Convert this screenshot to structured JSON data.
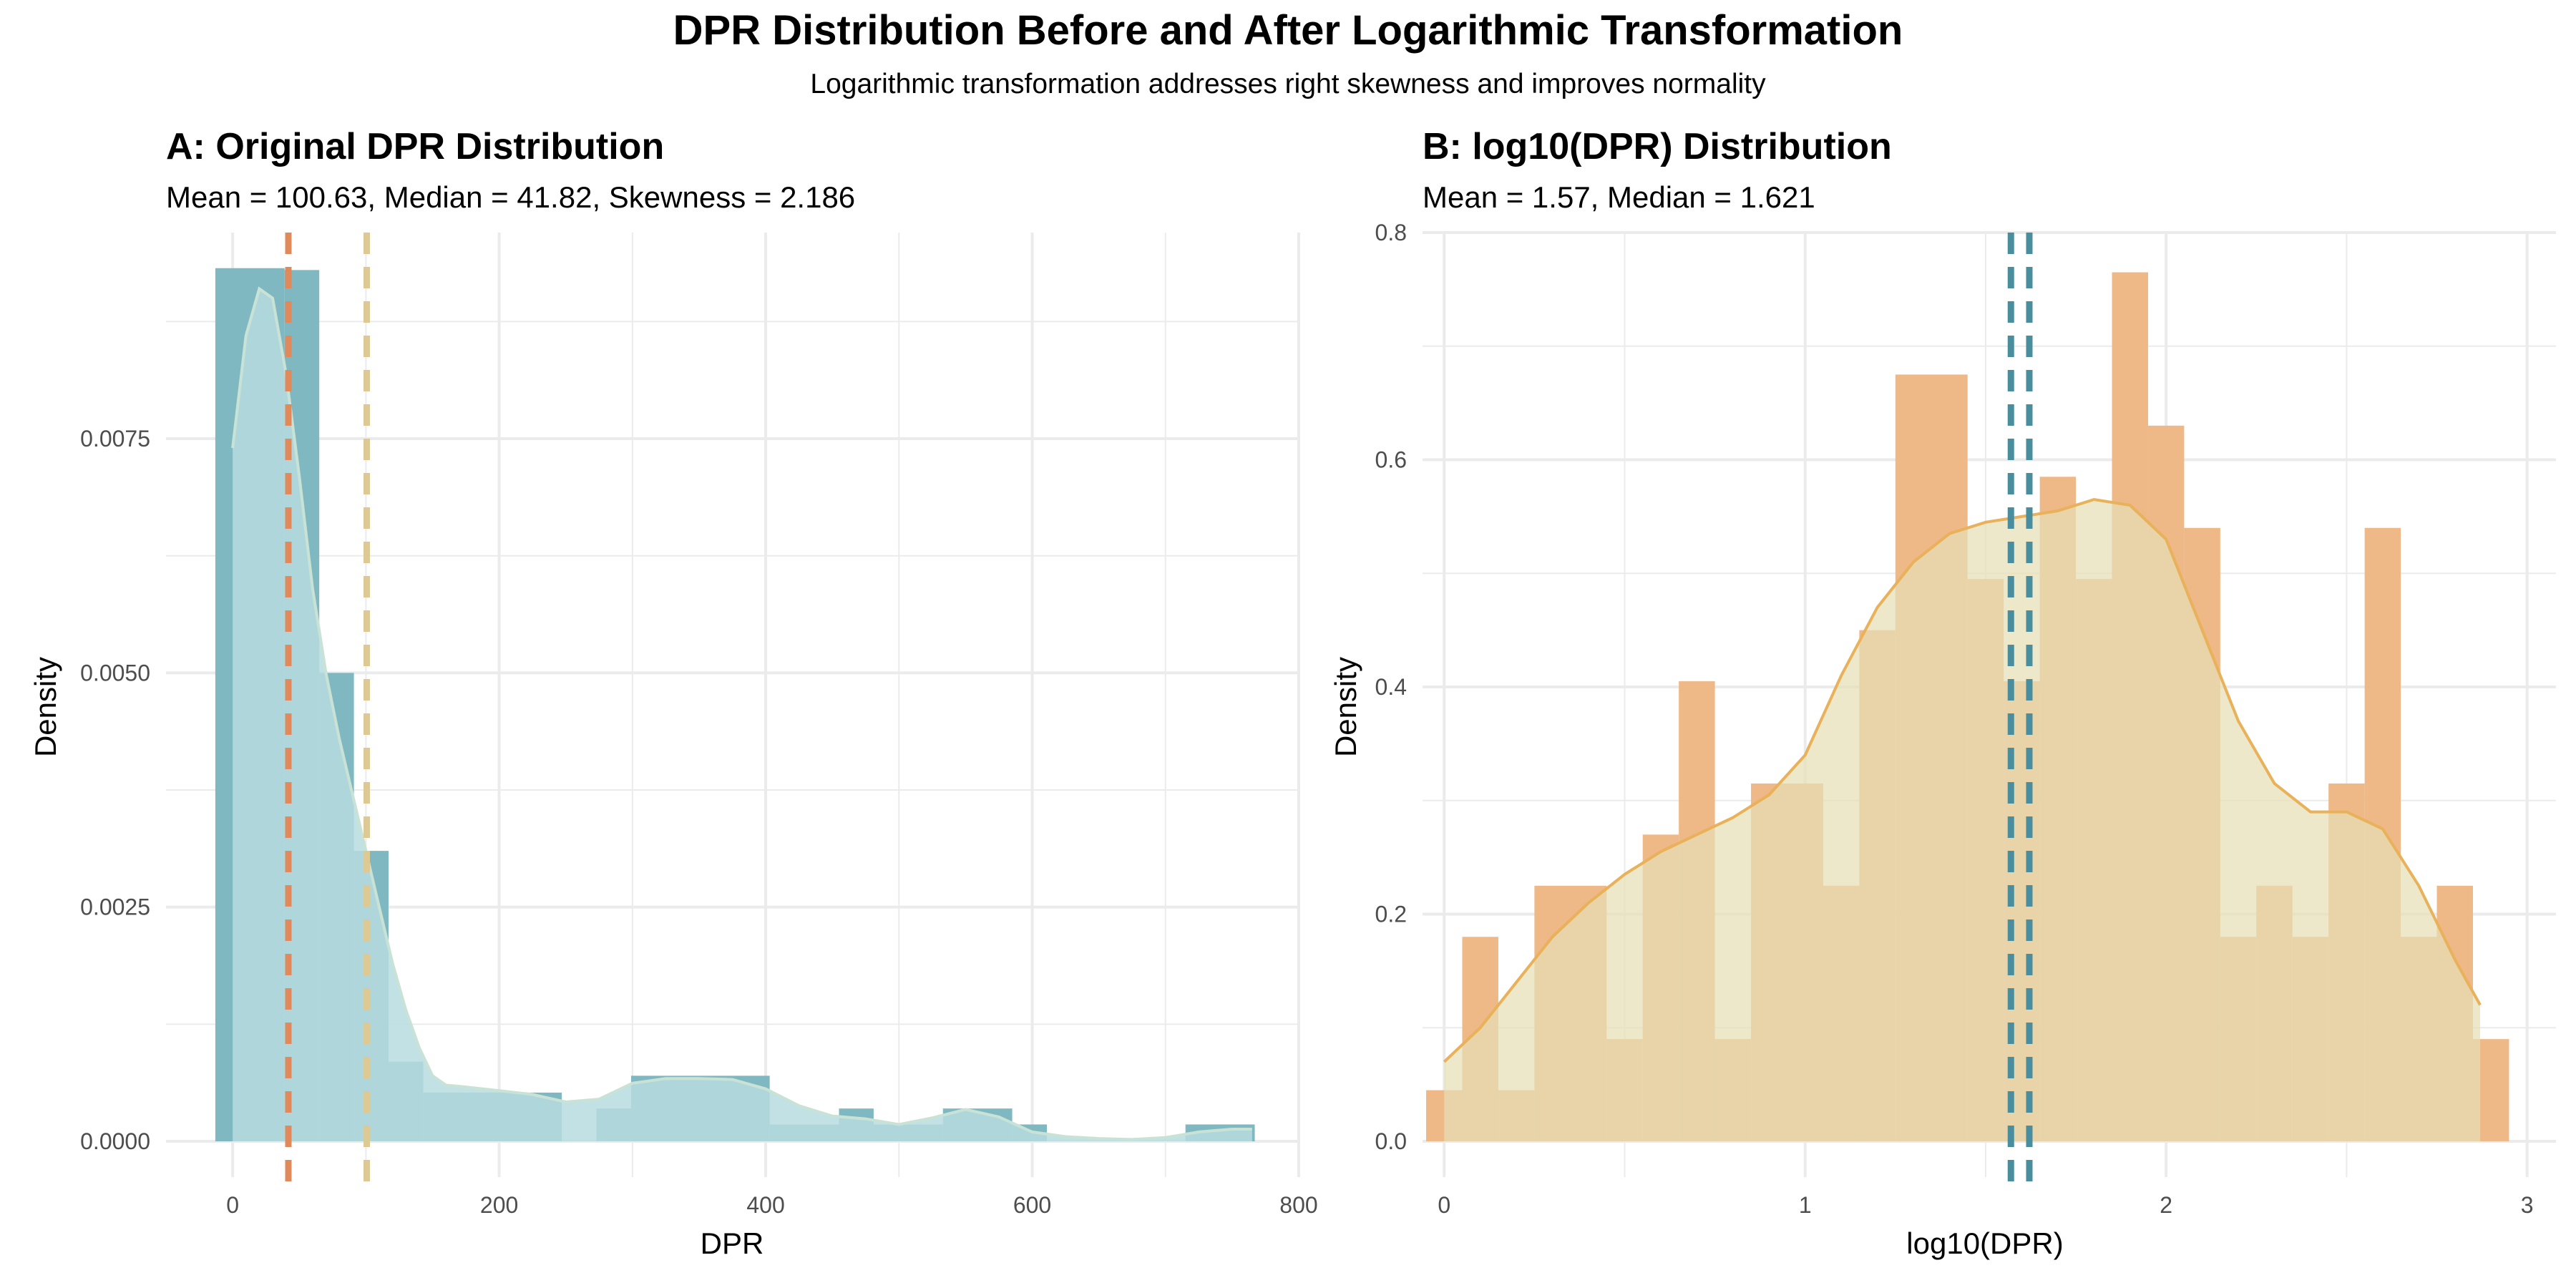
{
  "figure": {
    "title": "DPR Distribution Before and After Logarithmic Transformation",
    "subtitle": "Logarithmic transformation addresses right skewness and improves normality"
  },
  "colors": {
    "hist_a": "#7fb8c0",
    "density_a_fill": "#b7dcdf",
    "density_a_line": "#c9e2d6",
    "median_a": "#e0895a",
    "mean_a": "#dcc994",
    "hist_b": "#eeb887",
    "density_b_fill": "#e6dfb5",
    "density_b_line": "#e8b15a",
    "lines_b": "#4a8e9e",
    "grid": "#ebebeb"
  },
  "chart_data": [
    {
      "type": "histogram",
      "title": "A: Original DPR Distribution",
      "subtitle": "Mean = 100.63, Median = 41.82, Skewness = 2.186",
      "xlabel": "DPR",
      "ylabel": "Density",
      "xlim": [
        -50,
        800
      ],
      "ylim": [
        0,
        0.0097
      ],
      "xticks": [
        0,
        200,
        400,
        600,
        800
      ],
      "xtick_labels": [
        "0",
        "200",
        "400",
        "600",
        "800"
      ],
      "yticks": [
        0,
        0.0025,
        0.005,
        0.0075
      ],
      "ytick_labels": [
        "0.0000",
        "0.0025",
        "0.0050",
        "0.0075"
      ],
      "grid": true,
      "bins": [
        {
          "x0": -13,
          "x1": 39,
          "density": 0.00932
        },
        {
          "x0": 39,
          "x1": 65,
          "density": 0.0093
        },
        {
          "x0": 65,
          "x1": 91,
          "density": 0.005
        },
        {
          "x0": 91,
          "x1": 117,
          "density": 0.0031
        },
        {
          "x0": 117,
          "x1": 143,
          "density": 0.00085
        },
        {
          "x0": 143,
          "x1": 247,
          "density": 0.00052
        },
        {
          "x0": 247,
          "x1": 273,
          "density": 0.0
        },
        {
          "x0": 273,
          "x1": 299,
          "density": 0.00035
        },
        {
          "x0": 299,
          "x1": 403,
          "density": 0.0007
        },
        {
          "x0": 403,
          "x1": 455,
          "density": 0.00018
        },
        {
          "x0": 455,
          "x1": 481,
          "density": 0.00035
        },
        {
          "x0": 481,
          "x1": 533,
          "density": 0.00018
        },
        {
          "x0": 533,
          "x1": 585,
          "density": 0.00035
        },
        {
          "x0": 585,
          "x1": 611,
          "density": 0.00018
        },
        {
          "x0": 611,
          "x1": 715,
          "density": 0.0
        },
        {
          "x0": 715,
          "x1": 767,
          "density": 0.00018
        }
      ],
      "density_curve": {
        "x": [
          0,
          10,
          20,
          30,
          40,
          50,
          60,
          70,
          80,
          90,
          100,
          110,
          120,
          130,
          140,
          150,
          160,
          175,
          200,
          225,
          250,
          275,
          300,
          325,
          350,
          375,
          400,
          425,
          450,
          475,
          500,
          525,
          550,
          575,
          600,
          625,
          650,
          675,
          700,
          725,
          750,
          765
        ],
        "y": [
          0.0074,
          0.0086,
          0.0091,
          0.009,
          0.0082,
          0.0071,
          0.0059,
          0.005,
          0.0043,
          0.0037,
          0.0031,
          0.0025,
          0.0019,
          0.0014,
          0.001,
          0.0007,
          0.0006,
          0.00058,
          0.00054,
          0.0005,
          0.00042,
          0.00045,
          0.00062,
          0.00067,
          0.00067,
          0.00066,
          0.00056,
          0.00038,
          0.00027,
          0.00024,
          0.00018,
          0.00025,
          0.00034,
          0.00026,
          0.0001,
          5e-05,
          3e-05,
          2e-05,
          4e-05,
          0.0001,
          0.00013,
          0.00013
        ]
      },
      "median": 41.82,
      "mean": 100.63
    },
    {
      "type": "histogram",
      "title": "B: log10(DPR) Distribution",
      "subtitle": "Mean = 1.57, Median = 1.621",
      "xlabel": "log10(DPR)",
      "ylabel": "Density",
      "xlim": [
        -0.06,
        3.08
      ],
      "ylim": [
        0,
        0.8
      ],
      "xticks": [
        0,
        1,
        2,
        3
      ],
      "xtick_labels": [
        "0",
        "1",
        "2",
        "3"
      ],
      "yticks": [
        0,
        0.2,
        0.4,
        0.6,
        0.8
      ],
      "ytick_labels": [
        "0.0",
        "0.2",
        "0.4",
        "0.6",
        "0.8"
      ],
      "grid": true,
      "bins": [
        {
          "x0": -0.05,
          "x1": 0.05,
          "density": 0.045
        },
        {
          "x0": 0.05,
          "x1": 0.15,
          "density": 0.18
        },
        {
          "x0": 0.15,
          "x1": 0.25,
          "density": 0.045
        },
        {
          "x0": 0.25,
          "x1": 0.45,
          "density": 0.225
        },
        {
          "x0": 0.45,
          "x1": 0.55,
          "density": 0.09
        },
        {
          "x0": 0.55,
          "x1": 0.65,
          "density": 0.27
        },
        {
          "x0": 0.65,
          "x1": 0.75,
          "density": 0.405
        },
        {
          "x0": 0.75,
          "x1": 0.85,
          "density": 0.09
        },
        {
          "x0": 0.85,
          "x1": 1.05,
          "density": 0.315
        },
        {
          "x0": 1.05,
          "x1": 1.15,
          "density": 0.225
        },
        {
          "x0": 1.15,
          "x1": 1.25,
          "density": 0.45
        },
        {
          "x0": 1.25,
          "x1": 1.45,
          "density": 0.675
        },
        {
          "x0": 1.45,
          "x1": 1.55,
          "density": 0.495
        },
        {
          "x0": 1.55,
          "x1": 1.65,
          "density": 0.405
        },
        {
          "x0": 1.65,
          "x1": 1.75,
          "density": 0.585
        },
        {
          "x0": 1.75,
          "x1": 1.85,
          "density": 0.495
        },
        {
          "x0": 1.85,
          "x1": 1.95,
          "density": 0.765
        },
        {
          "x0": 1.95,
          "x1": 2.05,
          "density": 0.63
        },
        {
          "x0": 2.05,
          "x1": 2.15,
          "density": 0.54
        },
        {
          "x0": 2.15,
          "x1": 2.25,
          "density": 0.18
        },
        {
          "x0": 2.25,
          "x1": 2.35,
          "density": 0.225
        },
        {
          "x0": 2.35,
          "x1": 2.45,
          "density": 0.18
        },
        {
          "x0": 2.45,
          "x1": 2.55,
          "density": 0.315
        },
        {
          "x0": 2.55,
          "x1": 2.65,
          "density": 0.54
        },
        {
          "x0": 2.65,
          "x1": 2.75,
          "density": 0.18
        },
        {
          "x0": 2.75,
          "x1": 2.85,
          "density": 0.225
        },
        {
          "x0": 2.85,
          "x1": 2.95,
          "density": 0.09
        }
      ],
      "density_curve": {
        "x": [
          0,
          0.1,
          0.2,
          0.3,
          0.4,
          0.5,
          0.6,
          0.7,
          0.8,
          0.9,
          1.0,
          1.1,
          1.2,
          1.3,
          1.4,
          1.5,
          1.6,
          1.7,
          1.8,
          1.9,
          2.0,
          2.1,
          2.2,
          2.3,
          2.4,
          2.5,
          2.6,
          2.7,
          2.8,
          2.87
        ],
        "y": [
          0.07,
          0.1,
          0.14,
          0.18,
          0.21,
          0.235,
          0.255,
          0.27,
          0.285,
          0.305,
          0.34,
          0.41,
          0.47,
          0.51,
          0.535,
          0.545,
          0.55,
          0.555,
          0.565,
          0.56,
          0.53,
          0.45,
          0.37,
          0.315,
          0.29,
          0.29,
          0.275,
          0.225,
          0.16,
          0.12
        ]
      },
      "median": 1.621,
      "mean": 1.57
    }
  ]
}
